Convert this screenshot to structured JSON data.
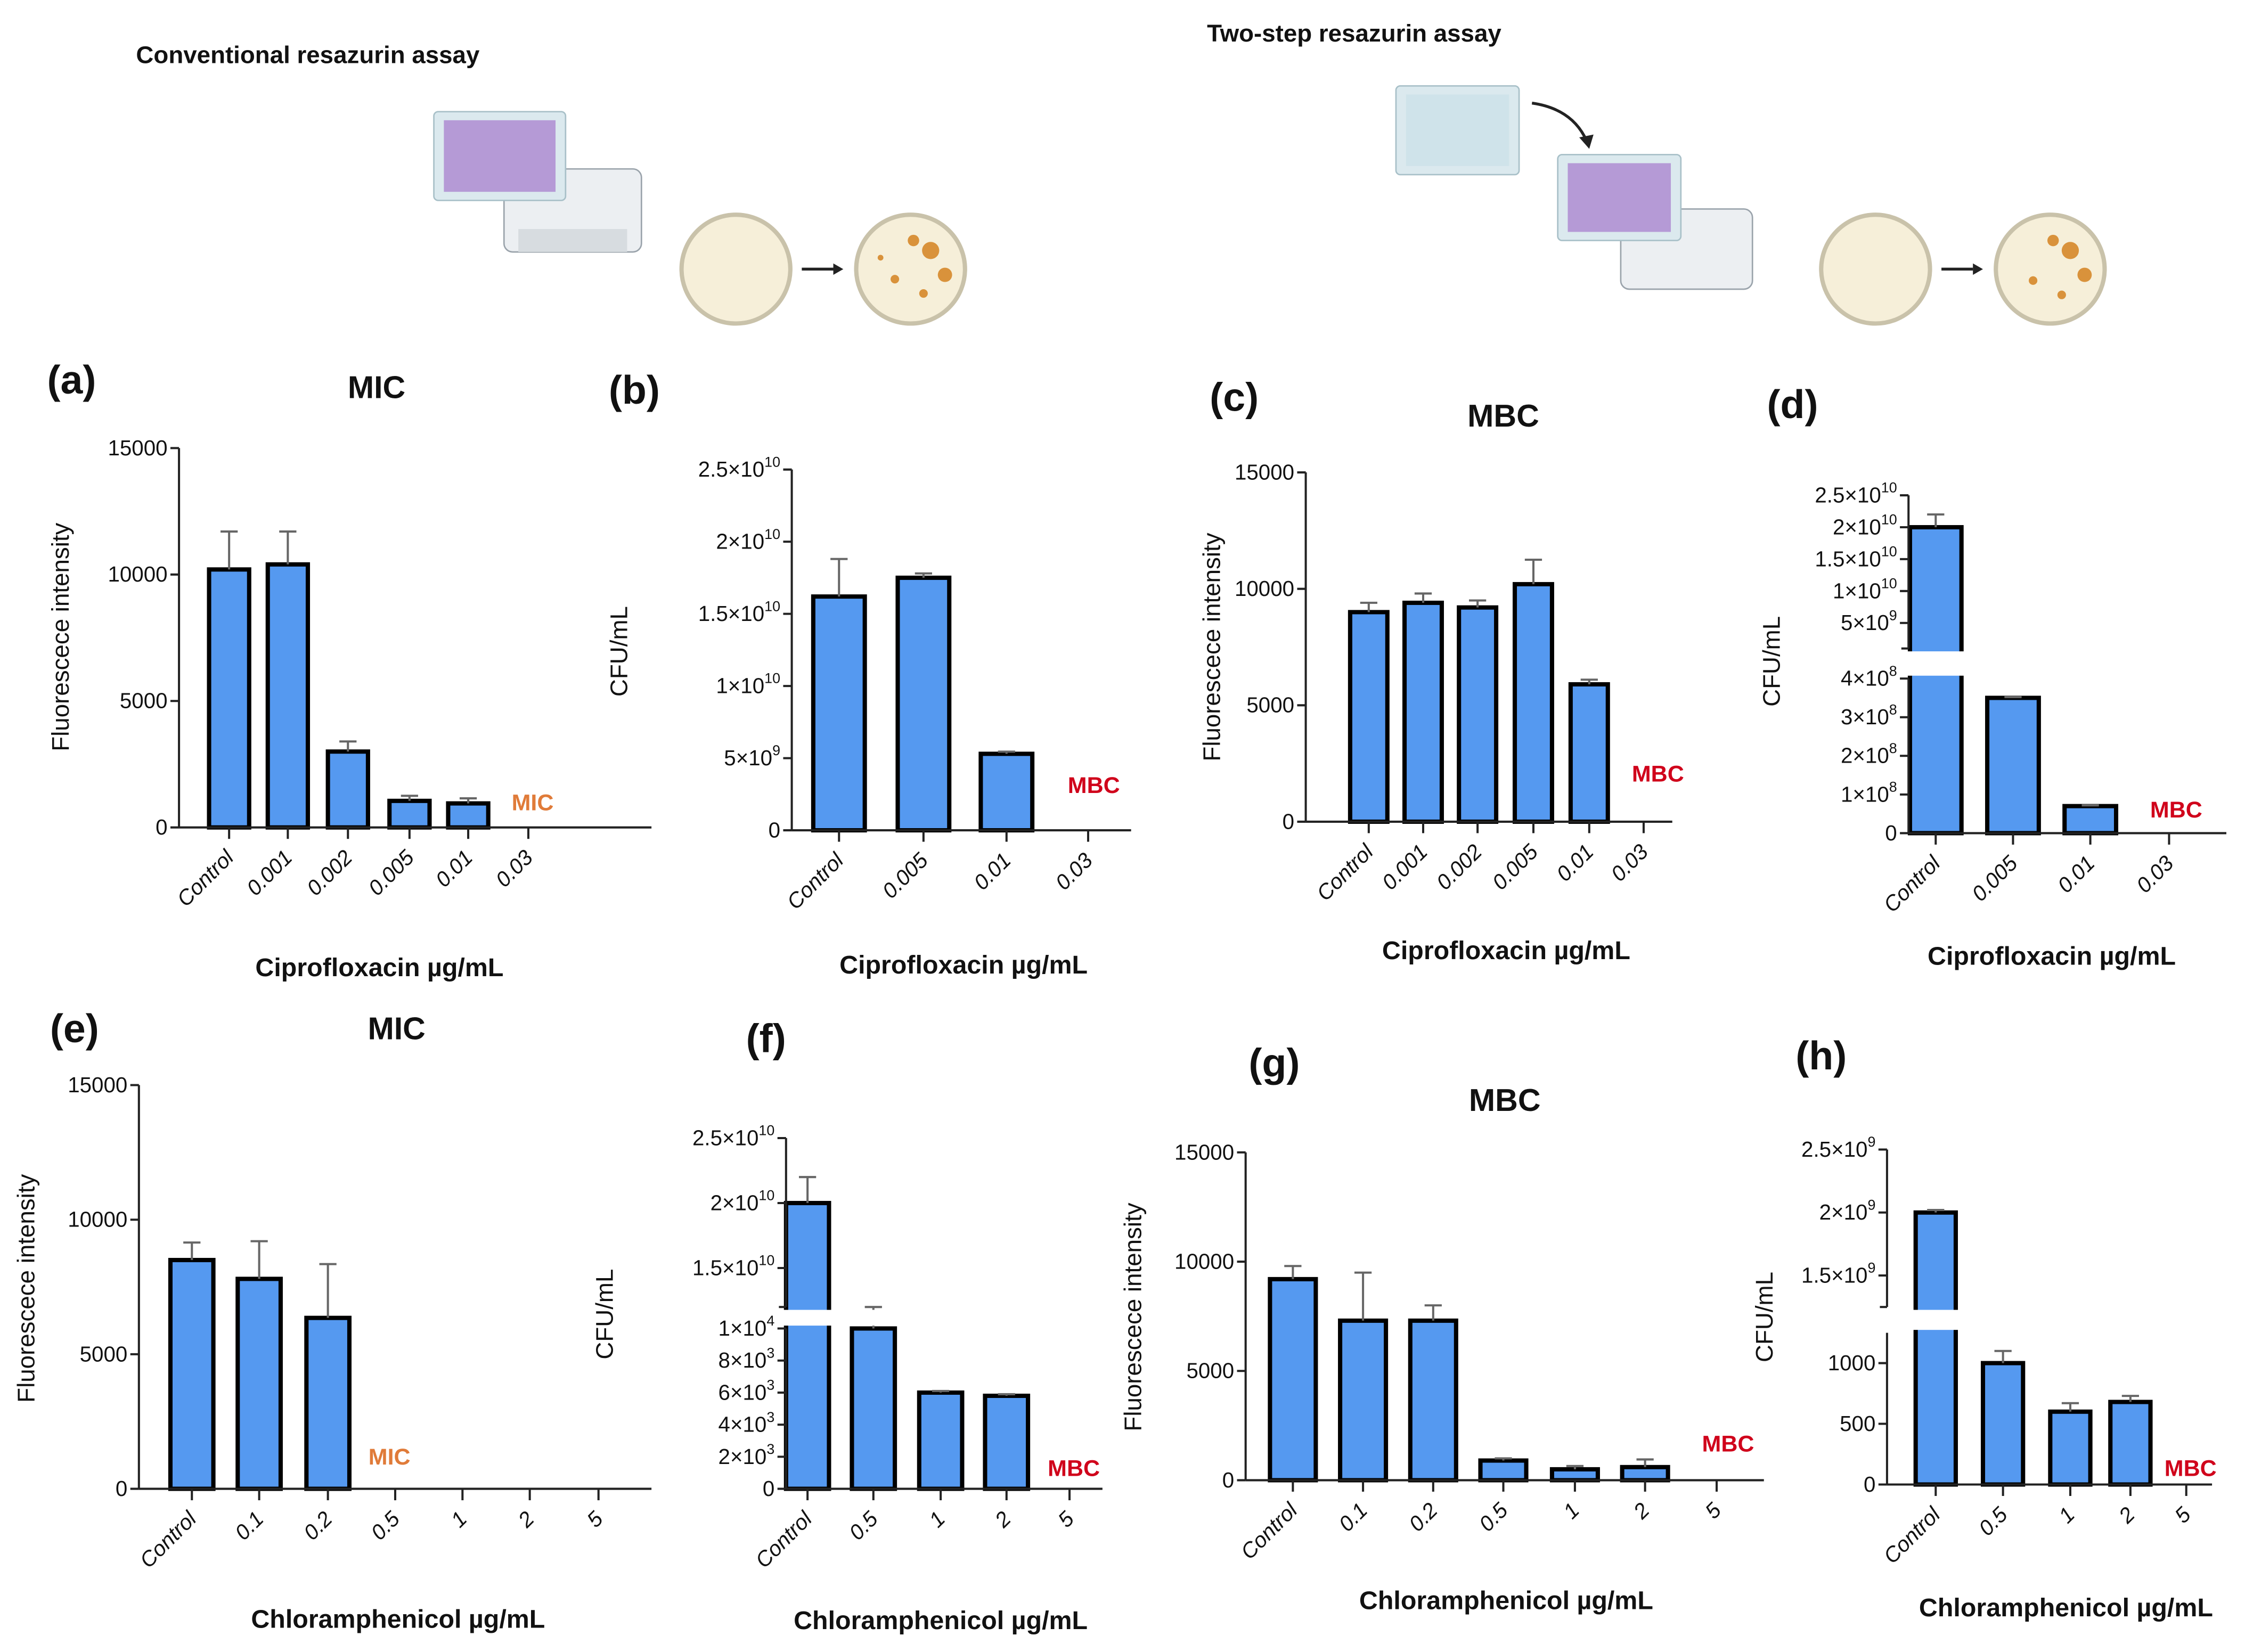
{
  "schematic": {
    "left_title": "Conventional resazurin assay",
    "right_title": "Two-step  resazurin assay"
  },
  "colors": {
    "bar": "#5599f0",
    "mic": "#e07b39",
    "mbc": "#d0021b",
    "error": "#666666"
  },
  "chart_data": [
    {
      "id": "a",
      "panel_label": "(a)",
      "title": "MIC",
      "type": "bar",
      "xlabel": "Ciprofloxacin µg/mL",
      "ylabel": "Fluorescece intensity",
      "categories": [
        "Control",
        "0.001",
        "0.002",
        "0.005",
        "0.01",
        "0.03"
      ],
      "values": [
        10200,
        10400,
        3000,
        1050,
        950,
        0
      ],
      "error_upper": [
        11700,
        11700,
        3400,
        1250,
        1150,
        0
      ],
      "segments": [
        {
          "range": [
            0,
            15000
          ],
          "ticks": [
            {
              "v": 0,
              "label": "0"
            },
            {
              "v": 5000,
              "label": "5000"
            },
            {
              "v": 10000,
              "label": "10000"
            },
            {
              "v": 15000,
              "label": "15000"
            }
          ]
        }
      ],
      "annotation": {
        "text": "MIC",
        "kind": "mic"
      }
    },
    {
      "id": "b",
      "panel_label": "(b)",
      "title": "",
      "type": "bar",
      "xlabel": "Ciprofloxacin µg/mL",
      "ylabel": "CFU/mL",
      "categories": [
        "Control",
        "0.005",
        "0.01",
        "0.03"
      ],
      "values": [
        16200000000.0,
        17500000000.0,
        5300000000.0,
        0
      ],
      "error_upper": [
        18800000000.0,
        17800000000.0,
        5450000000.0,
        0
      ],
      "segments": [
        {
          "range": [
            0,
            25000000000.0
          ],
          "ticks": [
            {
              "v": 0,
              "label": "0"
            },
            {
              "v": 5000000000.0,
              "label": "5×10",
              "exp": "9"
            },
            {
              "v": 10000000000.0,
              "label": "1×10",
              "exp": "10"
            },
            {
              "v": 15000000000.0,
              "label": "1.5×10",
              "exp": "10"
            },
            {
              "v": 20000000000.0,
              "label": "2×10",
              "exp": "10"
            },
            {
              "v": 25000000000.0,
              "label": "2.5×10",
              "exp": "10"
            }
          ]
        }
      ],
      "annotation": {
        "text": "MBC",
        "kind": "mbc"
      }
    },
    {
      "id": "c",
      "panel_label": "(c)",
      "title": "MBC",
      "type": "bar",
      "xlabel": "Ciprofloxacin µg/mL",
      "ylabel": "Fluorescece intensity",
      "categories": [
        "Control",
        "0.001",
        "0.002",
        "0.005",
        "0.01",
        "0.03"
      ],
      "values": [
        9000,
        9400,
        9200,
        10200,
        5900,
        0
      ],
      "error_upper": [
        9400,
        9800,
        9500,
        11250,
        6100,
        0
      ],
      "segments": [
        {
          "range": [
            0,
            15000
          ],
          "ticks": [
            {
              "v": 0,
              "label": "0"
            },
            {
              "v": 5000,
              "label": "5000"
            },
            {
              "v": 10000,
              "label": "10000"
            },
            {
              "v": 15000,
              "label": "15000"
            }
          ]
        }
      ],
      "annotation": {
        "text": "MBC",
        "kind": "mbc"
      }
    },
    {
      "id": "d",
      "panel_label": "(d)",
      "title": "",
      "type": "bar",
      "xlabel": "Ciprofloxacin µg/mL",
      "ylabel": "CFU/mL",
      "categories": [
        "Control",
        "0.005",
        "0.01",
        "0.03"
      ],
      "values": [
        20000000000.0,
        350000000.0,
        70000000.0,
        0
      ],
      "error_upper": [
        22000000000.0,
        352000000.0,
        72000000.0,
        0
      ],
      "segments": [
        {
          "range": [
            0,
            400000000.0
          ],
          "ticks": [
            {
              "v": 0,
              "label": "0"
            },
            {
              "v": 100000000.0,
              "label": "1×10",
              "exp": "8"
            },
            {
              "v": 200000000.0,
              "label": "2×10",
              "exp": "8"
            },
            {
              "v": 300000000.0,
              "label": "3×10",
              "exp": "8"
            },
            {
              "v": 400000000.0,
              "label": "4×10",
              "exp": "8"
            }
          ]
        },
        {
          "range": [
            1000000000.0,
            25000000000.0
          ],
          "ticks": [
            {
              "v": 5000000000.0,
              "label": "5×10",
              "exp": "9"
            },
            {
              "v": 10000000000.0,
              "label": "1×10",
              "exp": "10"
            },
            {
              "v": 15000000000.0,
              "label": "1.5×10",
              "exp": "10"
            },
            {
              "v": 20000000000.0,
              "label": "2×10",
              "exp": "10"
            },
            {
              "v": 25000000000.0,
              "label": "2.5×10",
              "exp": "10"
            }
          ]
        }
      ],
      "annotation": {
        "text": "MBC",
        "kind": "mbc"
      }
    },
    {
      "id": "e",
      "panel_label": "(e)",
      "title": "MIC",
      "type": "bar",
      "xlabel": "Chloramphenicol µg/mL",
      "ylabel": "Fluorescece intensity",
      "categories": [
        "Control",
        "0.1",
        "0.2",
        "0.5",
        "1",
        "2",
        "5"
      ],
      "values": [
        8500,
        7800,
        6350,
        0,
        0,
        0,
        0
      ],
      "error_upper": [
        9150,
        9200,
        8350,
        0,
        0,
        0,
        0
      ],
      "segments": [
        {
          "range": [
            0,
            15000
          ],
          "ticks": [
            {
              "v": 0,
              "label": "0"
            },
            {
              "v": 5000,
              "label": "5000"
            },
            {
              "v": 10000,
              "label": "10000"
            },
            {
              "v": 15000,
              "label": "15000"
            }
          ]
        }
      ],
      "annotation": {
        "text": "MIC",
        "kind": "mic"
      }
    },
    {
      "id": "f",
      "panel_label": "(f)",
      "title": "",
      "type": "bar",
      "xlabel": "Chloramphenicol µg/mL",
      "ylabel": "CFU/mL",
      "categories": [
        "Control",
        "0.5",
        "1",
        "2",
        "5"
      ],
      "values": [
        20000000000.0,
        10000,
        6000,
        5800,
        0
      ],
      "error_upper": [
        22000000000.0,
        10050,
        6100,
        5900,
        0
      ],
      "segments": [
        {
          "range": [
            0,
            10000
          ],
          "ticks": [
            {
              "v": 0,
              "label": "0"
            },
            {
              "v": 2000,
              "label": "2×10",
              "exp": "3"
            },
            {
              "v": 4000,
              "label": "4×10",
              "exp": "3"
            },
            {
              "v": 6000,
              "label": "6×10",
              "exp": "3"
            },
            {
              "v": 8000,
              "label": "8×10",
              "exp": "3"
            },
            {
              "v": 10000,
              "label": "1×10",
              "exp": "4"
            }
          ]
        },
        {
          "range": [
            12000000000.0,
            25000000000.0
          ],
          "ticks": [
            {
              "v": 15000000000.0,
              "label": "1.5×10",
              "exp": "10"
            },
            {
              "v": 20000000000.0,
              "label": "2×10",
              "exp": "10"
            },
            {
              "v": 25000000000.0,
              "label": "2.5×10",
              "exp": "10"
            }
          ]
        }
      ],
      "annotation": {
        "text": "MBC",
        "kind": "mbc"
      }
    },
    {
      "id": "g",
      "panel_label": "(g)",
      "title": "MBC",
      "type": "bar",
      "xlabel": "Chloramphenicol µg/mL",
      "ylabel": "Fluorescece intensity",
      "categories": [
        "Control",
        "0.1",
        "0.2",
        "0.5",
        "1",
        "2",
        "5"
      ],
      "values": [
        9200,
        7300,
        7300,
        900,
        500,
        600,
        0
      ],
      "error_upper": [
        9800,
        9500,
        8000,
        1000,
        650,
        950,
        0
      ],
      "segments": [
        {
          "range": [
            0,
            15000
          ],
          "ticks": [
            {
              "v": 0,
              "label": "0"
            },
            {
              "v": 5000,
              "label": "5000"
            },
            {
              "v": 10000,
              "label": "10000"
            },
            {
              "v": 15000,
              "label": "15000"
            }
          ]
        }
      ],
      "annotation": {
        "text": "MBC",
        "kind": "mbc"
      }
    },
    {
      "id": "h",
      "panel_label": "(h)",
      "title": "",
      "type": "bar",
      "xlabel": "Chloramphenicol µg/mL",
      "ylabel": "CFU/mL",
      "categories": [
        "Control",
        "0.5",
        "1",
        "2",
        "5"
      ],
      "values": [
        2000000000.0,
        1000,
        600,
        680,
        0
      ],
      "error_upper": [
        2020000000.0,
        1100,
        670,
        730,
        0
      ],
      "segments": [
        {
          "range": [
            0,
            1250
          ],
          "ticks": [
            {
              "v": 0,
              "label": "0"
            },
            {
              "v": 500,
              "label": "500"
            },
            {
              "v": 1000,
              "label": "1000"
            }
          ]
        },
        {
          "range": [
            1250000000.0,
            2500000000.0
          ],
          "ticks": [
            {
              "v": 1500000000.0,
              "label": "1.5×10",
              "exp": "9"
            },
            {
              "v": 2000000000.0,
              "label": "2×10",
              "exp": "9"
            },
            {
              "v": 2500000000.0,
              "label": "2.5×10",
              "exp": "9"
            }
          ]
        }
      ],
      "annotation": {
        "text": "MBC",
        "kind": "mbc"
      }
    }
  ]
}
